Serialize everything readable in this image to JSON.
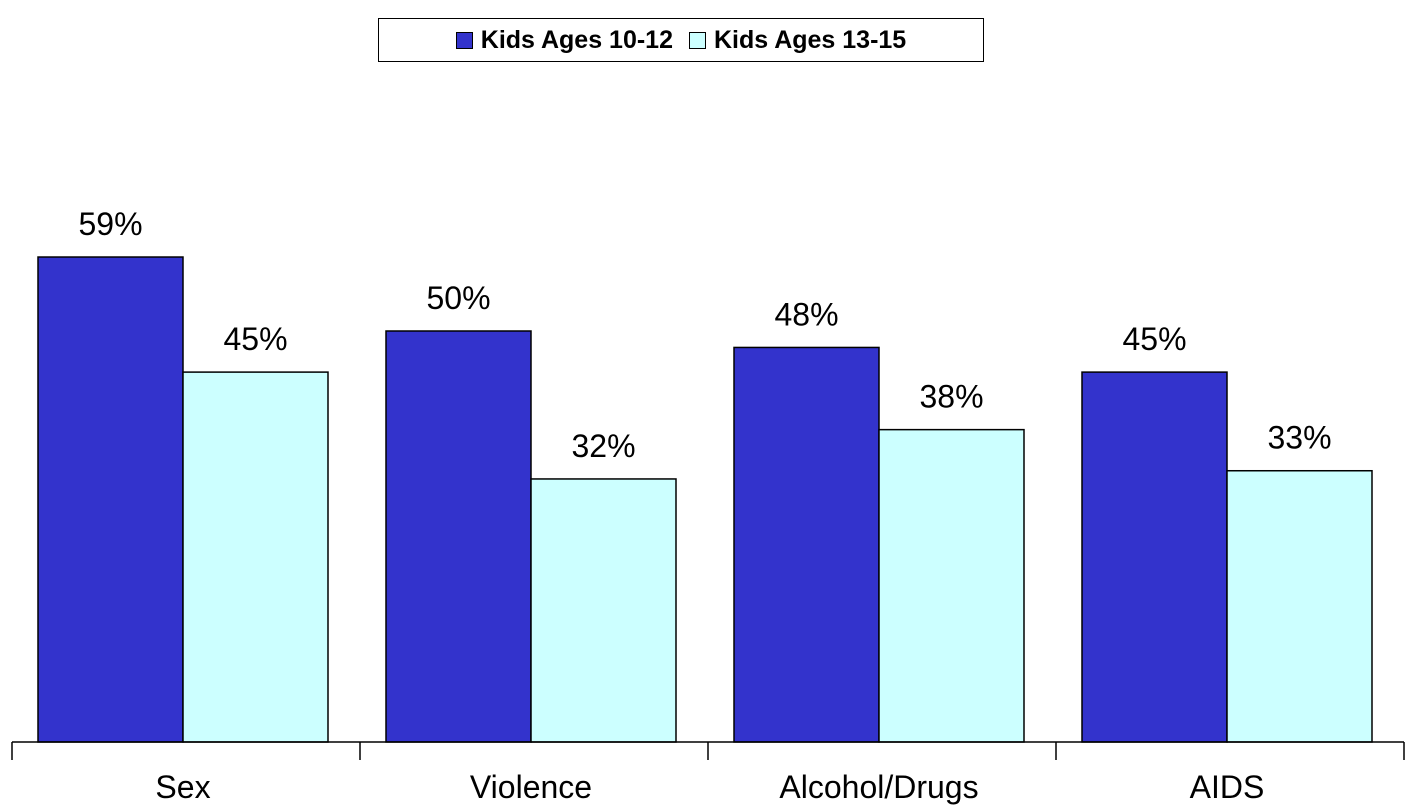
{
  "chart_data": {
    "type": "bar",
    "categories": [
      "Sex",
      "Violence",
      "Alcohol/Drugs",
      "AIDS"
    ],
    "series": [
      {
        "name": "Kids Ages 10-12",
        "values": [
          59,
          50,
          48,
          45
        ],
        "labels": [
          "59%",
          "50%",
          "48%",
          "45%"
        ],
        "color": "#3333cc"
      },
      {
        "name": "Kids Ages 13-15",
        "values": [
          45,
          32,
          38,
          33
        ],
        "labels": [
          "45%",
          "32%",
          "38%",
          "33%"
        ],
        "color": "#ccffff"
      }
    ],
    "ylim": [
      0,
      100
    ],
    "grid": false,
    "legend": "top-center",
    "xlabel": "",
    "ylabel": ""
  }
}
